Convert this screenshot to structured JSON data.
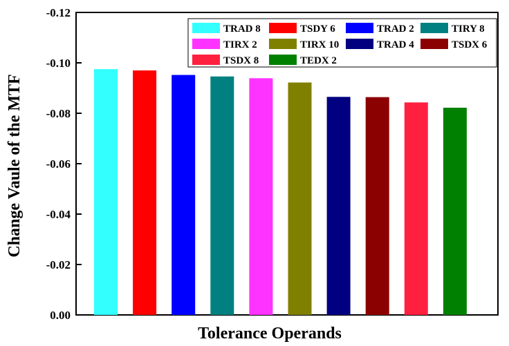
{
  "chart_data": {
    "type": "bar",
    "xlabel": "Tolerance Operands",
    "ylabel": "Change Vaule of the  MTF",
    "ylim": [
      0,
      -0.12
    ],
    "y_ticks": [
      0.0,
      -0.02,
      -0.04,
      -0.06,
      -0.08,
      -0.1,
      -0.12
    ],
    "y_tick_labels": [
      "0.00",
      "-0.02",
      "-0.04",
      "-0.06",
      "-0.08",
      "-0.10",
      "-0.12"
    ],
    "legend_position": "top-right",
    "grid": false,
    "categories": [
      "TRAD 8",
      "TSDY 6",
      "TRAD 2",
      "TIRY 8",
      "TIRX 2",
      "TIRX 10",
      "TRAD 4",
      "TSDX 6",
      "TSDX 8",
      "TEDX 2"
    ],
    "values": [
      -0.0975,
      -0.097,
      -0.0952,
      -0.0946,
      -0.0939,
      -0.0922,
      -0.0865,
      -0.0864,
      -0.0843,
      -0.0822
    ],
    "colors": [
      "#33ffff",
      "#ff0000",
      "#0000ff",
      "#008080",
      "#ff33ff",
      "#808000",
      "#000080",
      "#8b0000",
      "#ff2040",
      "#008000"
    ]
  }
}
